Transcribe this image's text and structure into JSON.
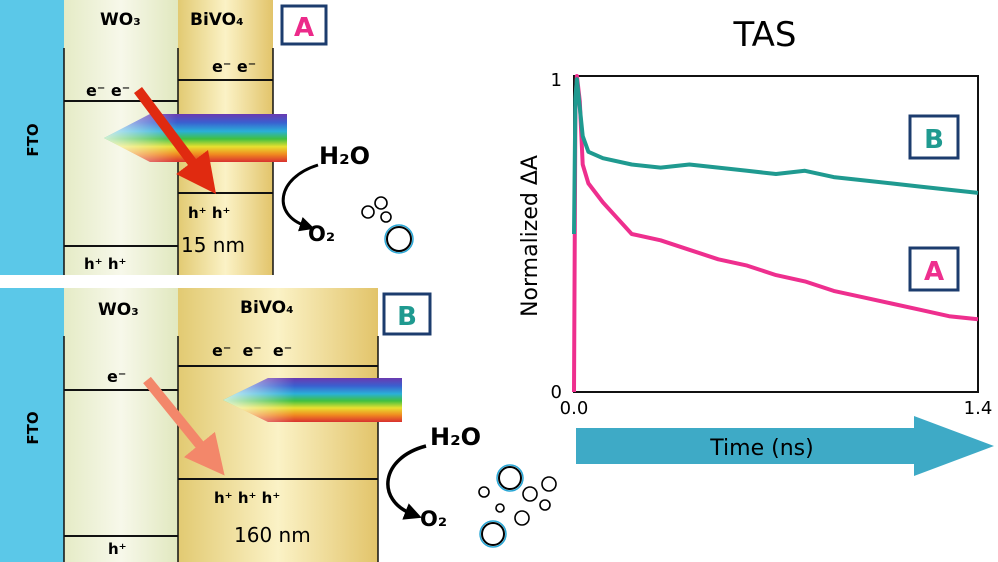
{
  "panel_a": {
    "badge": "A",
    "fto_label": "FTO",
    "wo3_label": "WO₃",
    "bivo4_label": "BiVO₄",
    "wo3_electrons": "e⁻ e⁻",
    "bivo4_electrons": "e⁻ e⁻",
    "bivo4_holes": "h⁺ h⁺",
    "wo3_holes": "h⁺ h⁺",
    "thickness": "15 nm",
    "reactant": "H₂O",
    "product": "O₂"
  },
  "panel_b": {
    "badge": "B",
    "fto_label": "FTO",
    "wo3_label": "WO₃",
    "bivo4_label": "BiVO₄",
    "wo3_electrons": "e⁻",
    "bivo4_electrons": "e⁻  e⁻  e⁻",
    "bivo4_holes": "h⁺ h⁺ h⁺",
    "wo3_holes": "h⁺",
    "thickness": "160 nm",
    "reactant": "H₂O",
    "product": "O₂"
  },
  "chart_data": {
    "type": "line",
    "title": "TAS",
    "xlabel": "Time (ns)",
    "ylabel": "Normalized ΔA",
    "xlim": [
      0.0,
      1.4
    ],
    "ylim": [
      0,
      1
    ],
    "x_tick_labels": [
      "0.0",
      "1.4"
    ],
    "y_tick_labels": [
      "0",
      "1"
    ],
    "colors": {
      "A": "#ee2f8e",
      "B": "#1f9a90",
      "axis_arrow": "#3eaac6"
    },
    "series": [
      {
        "name": "A",
        "x": [
          0.0,
          0.005,
          0.01,
          0.02,
          0.03,
          0.05,
          0.1,
          0.15,
          0.2,
          0.3,
          0.4,
          0.5,
          0.6,
          0.7,
          0.8,
          0.9,
          1.0,
          1.1,
          1.2,
          1.3,
          1.4
        ],
        "y": [
          0.0,
          0.9,
          1.0,
          0.92,
          0.72,
          0.66,
          0.6,
          0.55,
          0.5,
          0.48,
          0.45,
          0.42,
          0.4,
          0.37,
          0.35,
          0.32,
          0.3,
          0.28,
          0.26,
          0.24,
          0.23
        ]
      },
      {
        "name": "B",
        "x": [
          0.0,
          0.005,
          0.01,
          0.02,
          0.03,
          0.05,
          0.1,
          0.2,
          0.3,
          0.4,
          0.5,
          0.6,
          0.7,
          0.8,
          0.9,
          1.0,
          1.1,
          1.2,
          1.3,
          1.4
        ],
        "y": [
          0.5,
          0.93,
          0.99,
          0.9,
          0.81,
          0.76,
          0.74,
          0.72,
          0.71,
          0.72,
          0.71,
          0.7,
          0.69,
          0.7,
          0.68,
          0.67,
          0.66,
          0.65,
          0.64,
          0.63
        ]
      }
    ]
  }
}
